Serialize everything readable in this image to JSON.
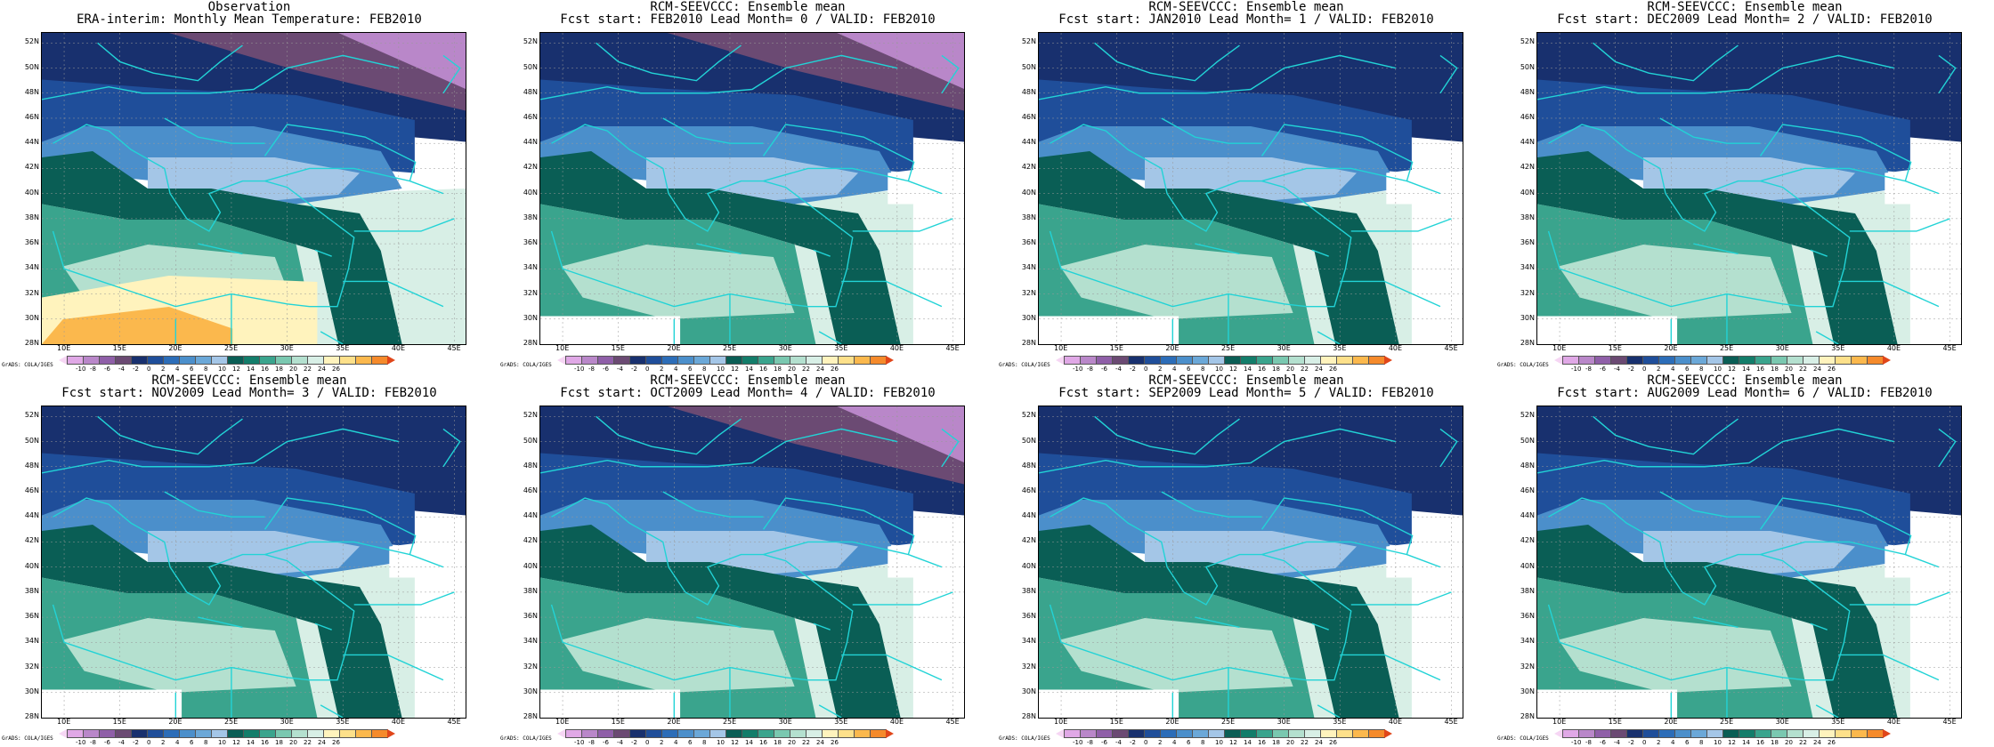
{
  "panels": [
    {
      "title1": "Observation",
      "title2": "ERA-interim:  Monthly Mean Temperature: FEB2010",
      "variant": "obs"
    },
    {
      "title1": "RCM-SEEVCCC: Ensemble mean",
      "title2": "Fcst start: FEB2010  Lead Month= 0 / VALID: FEB2010",
      "variant": "f0"
    },
    {
      "title1": "RCM-SEEVCCC: Ensemble mean",
      "title2": "Fcst start: JAN2010  Lead Month= 1 / VALID: FEB2010",
      "variant": "f1"
    },
    {
      "title1": "RCM-SEEVCCC: Ensemble mean",
      "title2": "Fcst start: DEC2009  Lead Month= 2 / VALID: FEB2010",
      "variant": "f1"
    },
    {
      "title1": "RCM-SEEVCCC: Ensemble mean",
      "title2": "Fcst start: NOV2009  Lead Month= 3 / VALID: FEB2010",
      "variant": "f1"
    },
    {
      "title1": "RCM-SEEVCCC: Ensemble mean",
      "title2": "Fcst start: OCT2009  Lead Month= 4 / VALID: FEB2010",
      "variant": "f0"
    },
    {
      "title1": "RCM-SEEVCCC: Ensemble mean",
      "title2": "Fcst start: SEP2009  Lead Month= 5 / VALID: FEB2010",
      "variant": "f1"
    },
    {
      "title1": "RCM-SEEVCCC: Ensemble mean",
      "title2": "Fcst start: AUG2009  Lead Month= 6 / VALID: FEB2010",
      "variant": "f1"
    }
  ],
  "lat_labels": [
    "52N",
    "50N",
    "48N",
    "46N",
    "44N",
    "42N",
    "40N",
    "38N",
    "36N",
    "34N",
    "32N",
    "30N",
    "28N"
  ],
  "lon_labels": [
    "10E",
    "15E",
    "20E",
    "25E",
    "30E",
    "35E",
    "40E",
    "45E"
  ],
  "colorbar": {
    "labels": [
      "-10",
      "-8",
      "-6",
      "-4",
      "-2",
      "0",
      "2",
      "4",
      "6",
      "8",
      "10",
      "12",
      "14",
      "16",
      "18",
      "20",
      "22",
      "24",
      "26"
    ],
    "colors": [
      "#f6d6f4",
      "#e0a8e6",
      "#b987c9",
      "#8f5fa8",
      "#6b4a73",
      "#18306e",
      "#1f4e9a",
      "#2c6db8",
      "#4b8fcb",
      "#6ba8d8",
      "#a4c6e7",
      "#0a5e55",
      "#137d6a",
      "#3aa48d",
      "#7ac8b0",
      "#b4e0cf",
      "#d8efe6",
      "#fff3bd",
      "#fde08a",
      "#fbb84d",
      "#f58a2b",
      "#e0461a"
    ],
    "credit": "GrADS: COLA/IGES"
  }
}
